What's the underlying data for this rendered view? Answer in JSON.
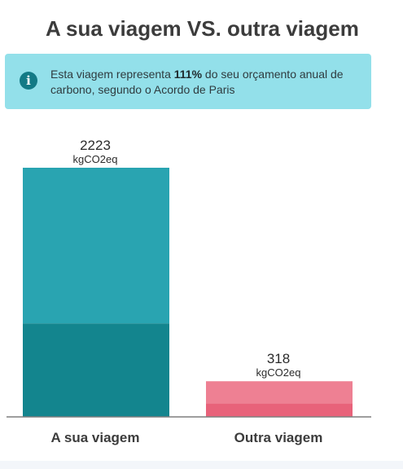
{
  "title": "A sua viagem VS. outra viagem",
  "info": {
    "text_before": "Esta viagem representa ",
    "highlight": "111%",
    "text_after": " do seu orçamento anual de carbono, segundo o Acordo de Paris",
    "icon": "info-icon"
  },
  "chart_data": {
    "type": "bar",
    "title": "A sua viagem VS. outra viagem",
    "categories": [
      "A sua viagem",
      "Outra viagem"
    ],
    "values": [
      2223,
      318
    ],
    "value_labels": [
      "2223",
      "318"
    ],
    "unit": "kgCO2eq",
    "stack_lower_fraction": [
      0.375,
      0.375
    ],
    "ylim": [
      0,
      2223
    ],
    "grid": false,
    "legend": "none",
    "colors": {
      "bar1_top": "#29a4b1",
      "bar1_bottom": "#13858e",
      "bar2_top": "#ee8093",
      "bar2_bottom": "#e8627a",
      "axis": "#7f7f7f"
    }
  }
}
